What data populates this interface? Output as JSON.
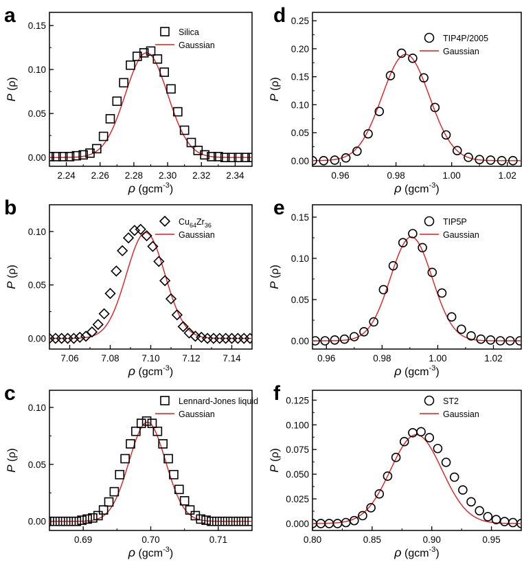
{
  "chart_data": [
    {
      "type": "scatter",
      "panel": "a",
      "marker": "square",
      "xlabel_symbol": "ρ",
      "xlabel_unit_base": "(gcm",
      "xlabel_unit_exp": "-3",
      "xlabel_unit_close": ")",
      "ylabel_symbol": "P",
      "ylabel_arg": "(ρ)",
      "xlim": [
        2.23,
        2.35
      ],
      "ylim": [
        -0.01,
        0.165
      ],
      "xticks": [
        2.24,
        2.26,
        2.28,
        2.3,
        2.32,
        2.34
      ],
      "xtick_labels": [
        "2.24",
        "2.26",
        "2.28",
        "2.30",
        "2.32",
        "2.34"
      ],
      "yticks": [
        0.0,
        0.05,
        0.1,
        0.15
      ],
      "ytick_labels": [
        "0.00",
        "0.05",
        "0.10",
        "0.15"
      ],
      "series": [
        {
          "name": "Silica",
          "kind": "points",
          "x": [
            2.23,
            2.234,
            2.238,
            2.242,
            2.246,
            2.25,
            2.254,
            2.258,
            2.262,
            2.266,
            2.27,
            2.274,
            2.278,
            2.282,
            2.286,
            2.29,
            2.294,
            2.298,
            2.302,
            2.306,
            2.31,
            2.314,
            2.318,
            2.322,
            2.326,
            2.33,
            2.334,
            2.338,
            2.342,
            2.346,
            2.35
          ],
          "y": [
            0.001,
            0.001,
            0.001,
            0.001,
            0.002,
            0.003,
            0.005,
            0.01,
            0.024,
            0.044,
            0.064,
            0.085,
            0.105,
            0.115,
            0.119,
            0.121,
            0.112,
            0.097,
            0.078,
            0.052,
            0.031,
            0.017,
            0.008,
            0.003,
            0.001,
            0.001,
            0.0,
            0.0,
            0.0,
            0.0,
            0.0
          ]
        },
        {
          "name": "Gaussian",
          "kind": "gaussian",
          "color": "#e41a1c",
          "amplitude": 0.119,
          "mean": 2.2875,
          "sigma": 0.0125
        }
      ]
    },
    {
      "type": "scatter",
      "panel": "b",
      "marker": "diamond",
      "xlabel_symbol": "ρ",
      "xlabel_unit_base": "(gcm",
      "xlabel_unit_exp": "-3",
      "xlabel_unit_close": ")",
      "ylabel_symbol": "P",
      "ylabel_arg": "(ρ)",
      "xlim": [
        7.05,
        7.15
      ],
      "ylim": [
        -0.01,
        0.125
      ],
      "xticks": [
        7.06,
        7.08,
        7.1,
        7.12,
        7.14
      ],
      "xtick_labels": [
        "7.06",
        "7.08",
        "7.10",
        "7.12",
        "7.14"
      ],
      "yticks": [
        0.0,
        0.05,
        0.1
      ],
      "ytick_labels": [
        "0.00",
        "0.05",
        "0.10"
      ],
      "series": [
        {
          "name_base": "Cu",
          "name_sub1": "64",
          "name_mid": "Zr",
          "name_sub2": "36",
          "kind": "points",
          "x": [
            7.05,
            7.053,
            7.056,
            7.059,
            7.062,
            7.065,
            7.068,
            7.071,
            7.074,
            7.077,
            7.08,
            7.083,
            7.086,
            7.089,
            7.092,
            7.095,
            7.098,
            7.101,
            7.104,
            7.107,
            7.11,
            7.113,
            7.116,
            7.119,
            7.122,
            7.125,
            7.128,
            7.131,
            7.134,
            7.137,
            7.14,
            7.143,
            7.146,
            7.149
          ],
          "y": [
            0.0,
            0.0,
            0.0,
            0.0,
            0.0,
            0.001,
            0.002,
            0.006,
            0.013,
            0.023,
            0.042,
            0.063,
            0.082,
            0.094,
            0.101,
            0.102,
            0.096,
            0.086,
            0.072,
            0.054,
            0.037,
            0.022,
            0.011,
            0.005,
            0.002,
            0.001,
            0.0,
            0.0,
            0.0,
            0.0,
            0.0,
            0.0,
            0.0,
            0.0
          ]
        },
        {
          "name": "Gaussian",
          "kind": "gaussian",
          "color": "#e41a1c",
          "amplitude": 0.099,
          "mean": 7.0975,
          "sigma": 0.0095
        }
      ]
    },
    {
      "type": "scatter",
      "panel": "c",
      "marker": "square",
      "xlabel_symbol": "ρ",
      "xlabel_unit_base": "(gcm",
      "xlabel_unit_exp": "-3",
      "xlabel_unit_close": ")",
      "ylabel_symbol": "P",
      "ylabel_arg": "(ρ)",
      "xlim": [
        0.685,
        0.715
      ],
      "ylim": [
        -0.008,
        0.115
      ],
      "xticks": [
        0.69,
        0.7,
        0.71
      ],
      "xtick_labels": [
        "0.69",
        "0.70",
        "0.71"
      ],
      "yticks": [
        0.0,
        0.05,
        0.1
      ],
      "ytick_labels": [
        "0.00",
        "0.05",
        "0.10"
      ],
      "series": [
        {
          "name": "Lennard-Jones liquid",
          "kind": "points",
          "x": [
            0.685,
            0.6858,
            0.6866,
            0.6874,
            0.6882,
            0.689,
            0.6898,
            0.6906,
            0.6914,
            0.6922,
            0.693,
            0.6938,
            0.6946,
            0.6954,
            0.6962,
            0.697,
            0.6978,
            0.6986,
            0.6994,
            0.7002,
            0.701,
            0.7018,
            0.7026,
            0.7034,
            0.7042,
            0.705,
            0.7058,
            0.7066,
            0.7074,
            0.7082,
            0.709,
            0.7098,
            0.7106,
            0.7114,
            0.7122,
            0.713,
            0.7138,
            0.7146
          ],
          "y": [
            0.0,
            0.0,
            0.0,
            0.0,
            0.0,
            0.0,
            0.001,
            0.002,
            0.003,
            0.005,
            0.01,
            0.017,
            0.026,
            0.041,
            0.055,
            0.068,
            0.079,
            0.086,
            0.088,
            0.086,
            0.079,
            0.068,
            0.055,
            0.041,
            0.028,
            0.018,
            0.01,
            0.005,
            0.002,
            0.001,
            0.0,
            0.0,
            0.0,
            0.0,
            0.0,
            0.0,
            0.0,
            0.0
          ]
        },
        {
          "name": "Gaussian",
          "kind": "gaussian",
          "color": "#e41a1c",
          "amplitude": 0.087,
          "mean": 0.6995,
          "sigma": 0.0027
        }
      ]
    },
    {
      "type": "scatter",
      "panel": "d",
      "marker": "circle",
      "xlabel_symbol": "ρ",
      "xlabel_unit_base": "(gcm",
      "xlabel_unit_exp": "-3",
      "xlabel_unit_close": ")",
      "ylabel_symbol": "P",
      "ylabel_arg": "(ρ)",
      "xlim": [
        0.95,
        1.025
      ],
      "ylim": [
        -0.01,
        0.265
      ],
      "xticks": [
        0.96,
        0.98,
        1.0,
        1.02
      ],
      "xtick_labels": [
        "0.96",
        "0.98",
        "1.00",
        "1.02"
      ],
      "yticks": [
        0.0,
        0.05,
        0.1,
        0.15,
        0.2,
        0.25
      ],
      "ytick_labels": [
        "0.00",
        "0.05",
        "0.10",
        "0.15",
        "0.20",
        "0.25"
      ],
      "series": [
        {
          "name": "TIP4P/2005",
          "kind": "points",
          "x": [
            0.95,
            0.954,
            0.958,
            0.962,
            0.966,
            0.97,
            0.974,
            0.978,
            0.982,
            0.986,
            0.99,
            0.994,
            0.998,
            1.002,
            1.006,
            1.01,
            1.014,
            1.018,
            1.022
          ],
          "y": [
            0.0,
            0.0,
            0.001,
            0.005,
            0.017,
            0.048,
            0.088,
            0.152,
            0.192,
            0.183,
            0.148,
            0.095,
            0.046,
            0.018,
            0.006,
            0.002,
            0.001,
            0.0,
            0.0
          ]
        },
        {
          "name": "Gaussian",
          "kind": "gaussian",
          "color": "#e41a1c",
          "amplitude": 0.19,
          "mean": 0.9835,
          "sigma": 0.0085
        }
      ]
    },
    {
      "type": "scatter",
      "panel": "e",
      "marker": "circle",
      "xlabel_symbol": "ρ",
      "xlabel_unit_base": "(gcm",
      "xlabel_unit_exp": "-3",
      "xlabel_unit_close": ")",
      "ylabel_symbol": "P",
      "ylabel_arg": "(ρ)",
      "xlim": [
        0.955,
        1.03
      ],
      "ylim": [
        -0.01,
        0.165
      ],
      "xticks": [
        0.96,
        0.98,
        1.0,
        1.02
      ],
      "xtick_labels": [
        "0.96",
        "0.98",
        "1.00",
        "1.02"
      ],
      "yticks": [
        0.0,
        0.05,
        0.1,
        0.15
      ],
      "ytick_labels": [
        "0.00",
        "0.05",
        "0.10",
        "0.15"
      ],
      "series": [
        {
          "name": "TIP5P",
          "kind": "points",
          "x": [
            0.956,
            0.9595,
            0.963,
            0.9665,
            0.97,
            0.9735,
            0.977,
            0.9805,
            0.984,
            0.9875,
            0.991,
            0.9945,
            0.998,
            1.0015,
            1.005,
            1.0085,
            1.012,
            1.0155,
            1.019,
            1.0225,
            1.026,
            1.0295
          ],
          "y": [
            0.0,
            0.0,
            0.001,
            0.002,
            0.005,
            0.011,
            0.023,
            0.062,
            0.091,
            0.119,
            0.13,
            0.113,
            0.083,
            0.058,
            0.029,
            0.014,
            0.006,
            0.002,
            0.001,
            0.0,
            0.0,
            0.0
          ]
        },
        {
          "name": "Gaussian",
          "kind": "gaussian",
          "color": "#e41a1c",
          "amplitude": 0.126,
          "mean": 0.9905,
          "sigma": 0.0075
        }
      ]
    },
    {
      "type": "scatter",
      "panel": "f",
      "marker": "circle",
      "xlabel_symbol": "ρ",
      "xlabel_unit_base": "(gcm",
      "xlabel_unit_exp": "-3",
      "xlabel_unit_close": ")",
      "ylabel_symbol": "P",
      "ylabel_arg": "(ρ)",
      "xlim": [
        0.8,
        0.975
      ],
      "ylim": [
        -0.007,
        0.135
      ],
      "xticks": [
        0.8,
        0.85,
        0.9,
        0.95
      ],
      "xtick_labels": [
        "0.80",
        "0.85",
        "0.90",
        "0.95"
      ],
      "yticks": [
        0.0,
        0.025,
        0.05,
        0.075,
        0.1,
        0.125
      ],
      "ytick_labels": [
        "0.000",
        "0.025",
        "0.050",
        "0.075",
        "0.100",
        "0.125"
      ],
      "series": [
        {
          "name": "ST2",
          "kind": "points",
          "x": [
            0.8,
            0.807,
            0.814,
            0.821,
            0.828,
            0.835,
            0.842,
            0.849,
            0.856,
            0.863,
            0.87,
            0.877,
            0.884,
            0.891,
            0.898,
            0.905,
            0.912,
            0.919,
            0.926,
            0.933,
            0.94,
            0.947,
            0.954,
            0.961,
            0.968,
            0.975
          ],
          "y": [
            0.0,
            0.0,
            0.0,
            0.0,
            0.001,
            0.003,
            0.008,
            0.016,
            0.03,
            0.048,
            0.067,
            0.083,
            0.092,
            0.093,
            0.087,
            0.076,
            0.062,
            0.047,
            0.034,
            0.022,
            0.013,
            0.007,
            0.004,
            0.002,
            0.001,
            0.0
          ]
        },
        {
          "name": "Gaussian",
          "kind": "gaussian",
          "color": "#e41a1c",
          "amplitude": 0.09,
          "mean": 0.887,
          "sigma": 0.0215
        }
      ]
    }
  ]
}
